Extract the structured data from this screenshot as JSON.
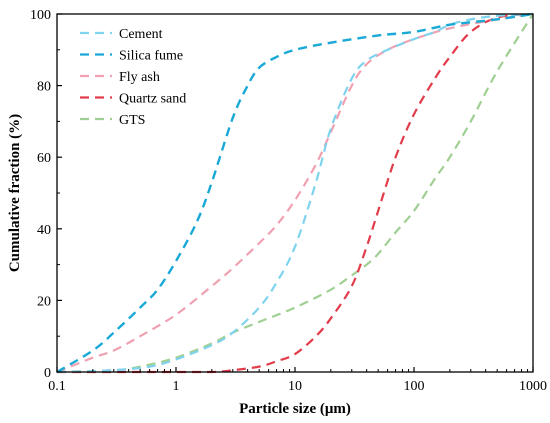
{
  "chart_data": {
    "type": "line",
    "xlabel": "Particle size (μm)",
    "ylabel": "Cumulative fraction (%)",
    "xscale": "log",
    "xlim": [
      0.1,
      1000
    ],
    "ylim": [
      0,
      100
    ],
    "x_tick_labels": [
      "0.1",
      "1",
      "10",
      "100",
      "1000"
    ],
    "y_tick_labels": [
      "0",
      "20",
      "40",
      "60",
      "80",
      "100"
    ],
    "grid": false,
    "legend_position": "top-left",
    "line_style": "dashed",
    "series": [
      {
        "name": "Cement",
        "color": "#7fd3ee",
        "x": [
          0.1,
          0.3,
          0.6,
          1,
          2,
          3,
          5,
          7,
          10,
          15,
          20,
          30,
          40,
          60,
          100,
          150,
          200,
          300,
          500,
          1000
        ],
        "y": [
          0,
          0.5,
          1.5,
          3.5,
          7.5,
          11,
          18,
          25,
          35,
          53,
          68,
          82,
          87,
          90,
          93,
          95,
          97,
          98.5,
          99.5,
          100
        ]
      },
      {
        "name": "Silica fume",
        "color": "#1aa9d6",
        "x": [
          0.1,
          0.2,
          0.3,
          0.5,
          0.7,
          1,
          1.5,
          2,
          3,
          4,
          5,
          7,
          10,
          20,
          50,
          100,
          200,
          500,
          1000
        ],
        "y": [
          0,
          6,
          11,
          18,
          23,
          31,
          42,
          53,
          71,
          80,
          85,
          88,
          90,
          92,
          94,
          95,
          97,
          98.5,
          100
        ]
      },
      {
        "name": "Fly ash",
        "color": "#f0a1b1",
        "x": [
          0.1,
          0.2,
          0.3,
          0.5,
          1,
          2,
          3,
          5,
          7,
          10,
          15,
          20,
          30,
          40,
          60,
          100,
          200,
          500,
          1000
        ],
        "y": [
          0,
          4,
          6,
          10,
          16,
          24,
          29,
          36,
          41,
          48,
          58,
          67,
          80,
          86,
          90,
          93,
          96,
          98.5,
          100
        ]
      },
      {
        "name": "Quartz sand",
        "color": "#e23c4b",
        "x": [
          0.1,
          0.5,
          1,
          2,
          3,
          5,
          7,
          10,
          15,
          20,
          30,
          40,
          50,
          70,
          100,
          150,
          200,
          300,
          500,
          1000
        ],
        "y": [
          0,
          0,
          0,
          0,
          0.5,
          1.5,
          3,
          5,
          10,
          15,
          24,
          35,
          45,
          60,
          72,
          82,
          88,
          95,
          99,
          100
        ]
      },
      {
        "name": "GTS",
        "color": "#9fcf92",
        "x": [
          0.1,
          0.3,
          0.5,
          1,
          2,
          3,
          5,
          10,
          20,
          30,
          40,
          50,
          70,
          100,
          150,
          200,
          300,
          500,
          1000
        ],
        "y": [
          0,
          0.5,
          1.5,
          4,
          8,
          11,
          14,
          18,
          23,
          27,
          30,
          33,
          39,
          45,
          54,
          60,
          70,
          84,
          100
        ]
      }
    ]
  }
}
